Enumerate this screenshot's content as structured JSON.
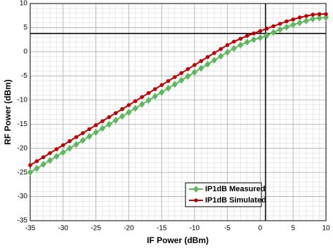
{
  "chart_data": {
    "type": "line",
    "x_label": "IF Power (dBm)",
    "y_label": "RF Power (dBm)",
    "x": [
      -35,
      -34,
      -33,
      -32,
      -31,
      -30,
      -29,
      -28,
      -27,
      -26,
      -25,
      -24,
      -23,
      -22,
      -21,
      -20,
      -19,
      -18,
      -17,
      -16,
      -15,
      -14,
      -13,
      -12,
      -11,
      -10,
      -9,
      -8,
      -7,
      -6,
      -5,
      -4,
      -3,
      -2,
      -1,
      0,
      1,
      2,
      3,
      4,
      5,
      6,
      7,
      8,
      9,
      10
    ],
    "series": [
      {
        "name": "IP1dB Measured",
        "color": "#5cb85c",
        "marker": "diamond",
        "values": [
          -25,
          -24.17,
          -23.34,
          -22.51,
          -21.68,
          -20.85,
          -20.02,
          -19.19,
          -18.36,
          -17.53,
          -16.7,
          -15.87,
          -15.04,
          -14.21,
          -13.38,
          -12.55,
          -11.72,
          -10.89,
          -10.06,
          -9.23,
          -8.4,
          -7.57,
          -6.74,
          -5.91,
          -5.08,
          -4.25,
          -3.42,
          -2.59,
          -1.76,
          -0.93,
          -0.1,
          0.7,
          1.4,
          2.0,
          2.5,
          2.9,
          3.4,
          4.0,
          4.6,
          5.1,
          5.6,
          6.0,
          6.4,
          6.8,
          7.0,
          7.1
        ]
      },
      {
        "name": "IP1dB Simulated",
        "color": "#c00000",
        "marker": "circle",
        "values": [
          -23.5,
          -22.67,
          -21.84,
          -21.01,
          -20.18,
          -19.35,
          -18.52,
          -17.69,
          -16.86,
          -16.03,
          -15.2,
          -14.37,
          -13.54,
          -12.71,
          -11.88,
          -11.05,
          -10.22,
          -9.39,
          -8.56,
          -7.73,
          -6.9,
          -6.07,
          -5.24,
          -4.41,
          -3.58,
          -2.75,
          -1.92,
          -1.09,
          -0.26,
          0.57,
          1.4,
          2.1,
          2.7,
          3.3,
          3.8,
          4.3,
          4.8,
          5.3,
          5.8,
          6.3,
          6.7,
          7.1,
          7.4,
          7.7,
          7.8,
          7.8
        ]
      }
    ],
    "xlim": [
      -35,
      10
    ],
    "xticks": [
      -35,
      -30,
      -25,
      -20,
      -15,
      -10,
      -5,
      0,
      5,
      10
    ],
    "ylim": [
      -35,
      10
    ],
    "yticks": [
      -35,
      -30,
      -25,
      -20,
      -15,
      -10,
      -5,
      0,
      5,
      10
    ],
    "minor_step": 1,
    "grid": true,
    "legend": "lower right",
    "reference_lines": {
      "x": 0.8,
      "y": 3.8
    }
  }
}
